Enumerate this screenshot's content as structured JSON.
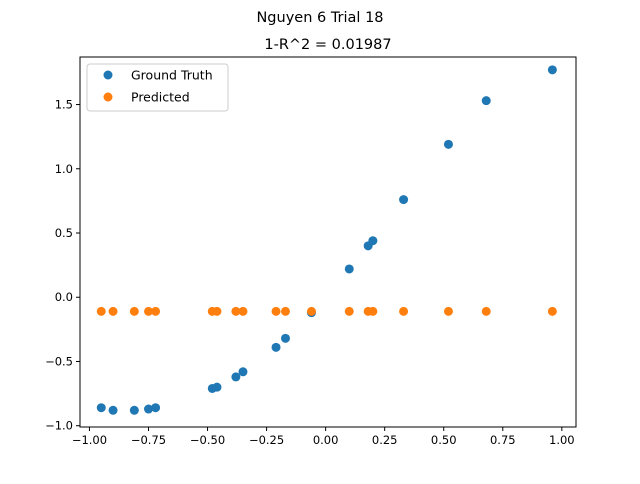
{
  "chart_data": {
    "type": "scatter",
    "suptitle": "Nguyen 6 Trial 18",
    "title": "1-R^2 = 0.01987",
    "xlabel": "",
    "ylabel": "",
    "xlim": [
      -1.04,
      1.06
    ],
    "ylim": [
      -1.01,
      1.87
    ],
    "xticks": [
      -1.0,
      -0.75,
      -0.5,
      -0.25,
      0.0,
      0.25,
      0.5,
      0.75,
      1.0
    ],
    "xtick_labels": [
      "−1.00",
      "−0.75",
      "−0.50",
      "−0.25",
      "0.00",
      "0.25",
      "0.50",
      "0.75",
      "1.00"
    ],
    "yticks": [
      -1.0,
      -0.5,
      0.0,
      0.5,
      1.0,
      1.5
    ],
    "ytick_labels": [
      "−1.0",
      "−0.5",
      "0.0",
      "0.5",
      "1.0",
      "1.5"
    ],
    "grid": false,
    "legend_position": "upper-left",
    "series": [
      {
        "name": "Ground Truth",
        "color": "#1f77b4",
        "x": [
          -0.95,
          -0.9,
          -0.81,
          -0.75,
          -0.72,
          -0.48,
          -0.46,
          -0.38,
          -0.35,
          -0.21,
          -0.17,
          -0.06,
          0.1,
          0.18,
          0.2,
          0.33,
          0.52,
          0.68,
          0.96
        ],
        "y": [
          -0.86,
          -0.88,
          -0.88,
          -0.87,
          -0.86,
          -0.71,
          -0.7,
          -0.62,
          -0.58,
          -0.39,
          -0.32,
          -0.12,
          0.22,
          0.4,
          0.44,
          0.76,
          1.19,
          1.53,
          1.77
        ]
      },
      {
        "name": "Predicted",
        "color": "#ff7f0e",
        "x": [
          -0.95,
          -0.9,
          -0.81,
          -0.75,
          -0.72,
          -0.48,
          -0.46,
          -0.38,
          -0.35,
          -0.21,
          -0.17,
          -0.06,
          0.1,
          0.18,
          0.2,
          0.33,
          0.52,
          0.68,
          0.96
        ],
        "y": [
          -0.11,
          -0.11,
          -0.11,
          -0.11,
          -0.11,
          -0.11,
          -0.11,
          -0.11,
          -0.11,
          -0.11,
          -0.11,
          -0.11,
          -0.11,
          -0.11,
          -0.11,
          -0.11,
          -0.11,
          -0.11,
          -0.11
        ]
      }
    ]
  }
}
